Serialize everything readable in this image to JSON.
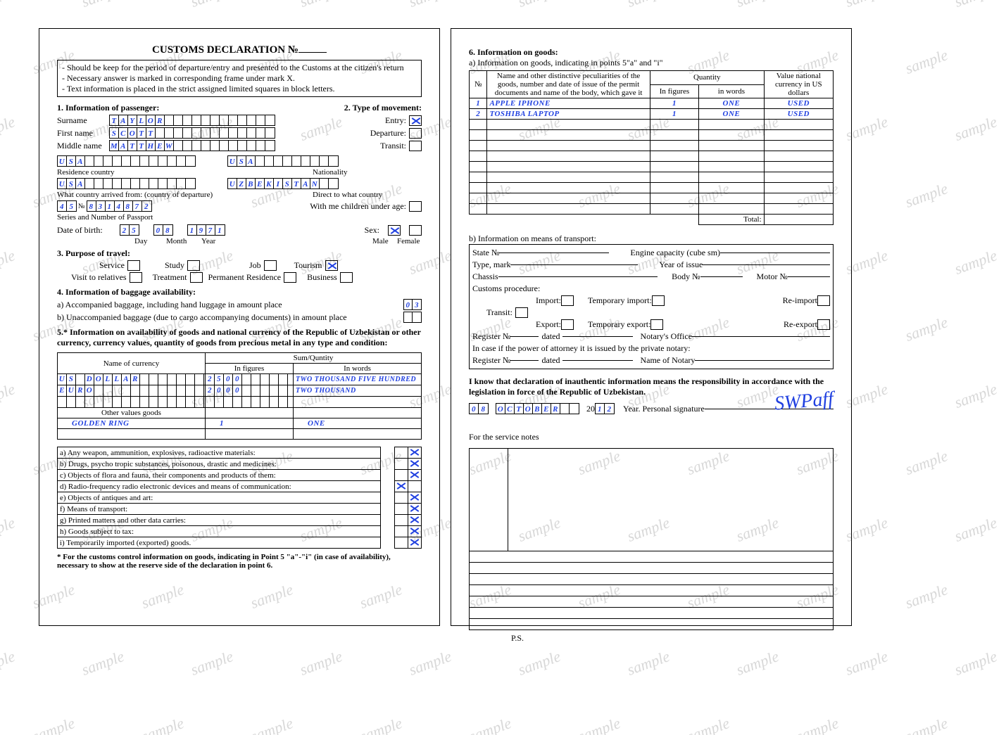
{
  "watermark_text": "sample",
  "title": "CUSTOMS DECLARATION №",
  "instructions": [
    "- Should be keep for the period of departure/entry and presented to the Customs at the citizen's return",
    "- Necessary answer is marked in corresponding frame under mark X.",
    "- Text information is placed in the strict assigned limited squares in block letters."
  ],
  "s1_heading": "1. Information of passenger:",
  "s2_heading": "2. Type of movement:",
  "labels": {
    "surname": "Surname",
    "firstname": "First name",
    "middlename": "Middle name",
    "residence": "Residence country",
    "nationality": "Nationality",
    "departure_country": "What country arrived from: (country of departure)",
    "direct_to": "Direct to what country",
    "passport": "Series and Number of Passport",
    "children": "With me children under age:",
    "dob": "Date of birth:",
    "day": "Day",
    "month": "Month",
    "year": "Year",
    "sex": "Sex:",
    "male": "Male",
    "female": "Female",
    "entry": "Entry:",
    "departure": "Departure:",
    "transit": "Transit:"
  },
  "passenger": {
    "surname": "TAYLOR",
    "firstname": "SCOTT",
    "middlename": "MATTHEW",
    "residence": "USA",
    "nationality": "USA",
    "from_country": "USA",
    "to_country": "UZBEKISTAN",
    "passport_series": "45",
    "passport_sep": "№",
    "passport_num": "8314872",
    "dob_day": "25",
    "dob_month": "08",
    "dob_year": "1971",
    "sex_male": true,
    "sex_female": false
  },
  "movement": {
    "entry": true,
    "departure": false,
    "transit": false
  },
  "s3_heading": "3. Purpose of travel:",
  "purpose_labels": {
    "service": "Service",
    "study": "Study",
    "job": "Job",
    "tourism": "Tourism",
    "visit": "Visit to relatives",
    "treatment": "Treatment",
    "permres": "Permanent Residence",
    "business": "Business"
  },
  "purpose": {
    "tourism": true
  },
  "s4_heading": "4. Information of baggage availability:",
  "s4a": "a) Accompanied baggage, including hand luggage in  amount place",
  "s4a_val": "03",
  "s4b": "b) Unaccompanied baggage (due to cargo accompanying documents) in amount place",
  "s5_heading": "5.* Information on availability of goods and national currency of the Republic of Uzbekistan or other currency, currency values, quantity of goods from precious metal in any type and condition:",
  "currency_headers": {
    "name": "Name of currency",
    "sum": "Sum/Quntity",
    "fig": "In figures",
    "words": "In words"
  },
  "currencies": [
    {
      "name": "US DOLLAR",
      "fig": "2500",
      "words": "TWO THOUSAND FIVE HUNDRED"
    },
    {
      "name": "EURO",
      "fig": "2000",
      "words": "TWO THOUSAND"
    }
  ],
  "other_values_label": "Other values goods",
  "other_values": [
    {
      "name": "GOLDEN RING",
      "fig": "1",
      "words": "ONE"
    }
  ],
  "yn_items": [
    {
      "t": "a) Any weapon, ammunition, explosives, radioactive materials:",
      "y": false,
      "n": true
    },
    {
      "t": "b) Drugs, psycho tropic substances, poisonous, drastic and medicines:",
      "y": false,
      "n": true
    },
    {
      "t": "c) Objects of flora and fauna, their components and products of them:",
      "y": false,
      "n": true
    },
    {
      "t": "d) Radio-frequency radio electronic devices and means of communication:",
      "y": true,
      "n": false
    },
    {
      "t": "e) Objects of antiques and art:",
      "y": false,
      "n": true
    },
    {
      "t": "f) Means of transport:",
      "y": false,
      "n": true
    },
    {
      "t": "g) Printed matters and other data carries:",
      "y": false,
      "n": true
    },
    {
      "t": "h) Goods subject to tax:",
      "y": false,
      "n": true
    },
    {
      "t": "i) Temporarily imported (exported) goods.",
      "y": false,
      "n": true
    }
  ],
  "s5_footnote": "* For the customs control information on goods, indicating in Point 5 \"a\"-\"i\" (in case of availability), necessary to show at the reserve side of the declaration in point 6.",
  "s6_heading": "6. Information on goods:",
  "s6a": "a) Information on goods, indicating in points 5\"a\" and \"i\"",
  "goods_headers": {
    "num": "№",
    "name": "Name and other distinctive peculiarities of the goods, number and date of issue of the permit documents and name of the body, which gave it",
    "qty": "Quantity",
    "fig": "In figures",
    "words": "in words",
    "val": "Value national currency in US dollars"
  },
  "goods": [
    {
      "n": "1",
      "name": "APPLE IPHONE",
      "fig": "1",
      "words": "ONE",
      "val": "USED"
    },
    {
      "n": "2",
      "name": "TOSHIBA LAPTOP",
      "fig": "1",
      "words": "ONE",
      "val": "USED"
    }
  ],
  "total_label": "Total:",
  "s6b": "b) Information on means of transport:",
  "transport_labels": {
    "state": "State №",
    "engine": "Engine capacity (cube sm)",
    "type": "Type, mark",
    "year": "Year of issue",
    "chassis": "Chassis",
    "body": "Body №",
    "motor": "Motor №",
    "customs": "Customs procedure:",
    "import": "Import:",
    "timport": "Temporary import:",
    "reimport": "Re-import",
    "transit": "Transit:",
    "export": "Export:",
    "texport": "Temporary export:",
    "reexport": "Re-export",
    "reg1": "Register №",
    "dated": "dated",
    "notary": "Notary's Office",
    "incase": "In case if the power of attorney it is issued by the private notary:",
    "reg2": "Register №",
    "nname": "Name of Notary"
  },
  "attest": "I know that declaration of inauthentic information means the responsibility in accordance with the legislation in force of the Republic of Uzbekistan.",
  "date": {
    "day": "08",
    "month": "OCTOBER",
    "year": "12",
    "yrprefix": "20",
    "yrlabel": "Year. Personal signature"
  },
  "signature": "SWPaff",
  "service_notes": "For the service notes",
  "ps": "P.S."
}
